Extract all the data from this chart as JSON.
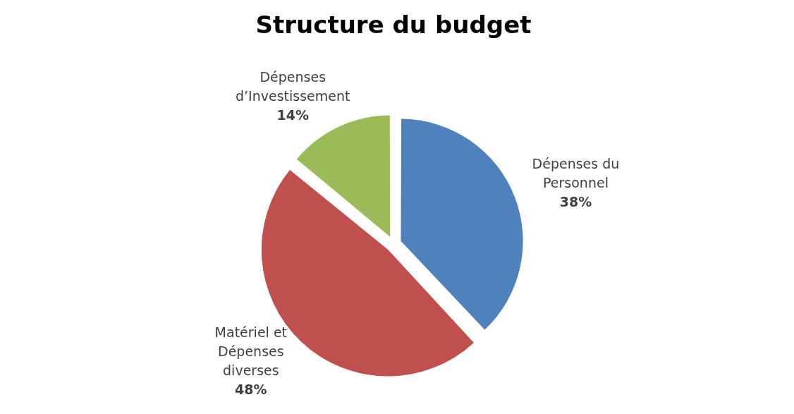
{
  "chart_data": {
    "type": "pie",
    "title": "Structure du budget",
    "categories": [
      "Dépenses du Personnel",
      "Matériel et Dépenses diverses",
      "Dépenses d’Investissement"
    ],
    "values": [
      38,
      48,
      14
    ],
    "colors": [
      "#4f81bd",
      "#c0504d",
      "#9bbb59"
    ],
    "value_labels": [
      "38%",
      "48%",
      "14%"
    ],
    "legend": false
  }
}
